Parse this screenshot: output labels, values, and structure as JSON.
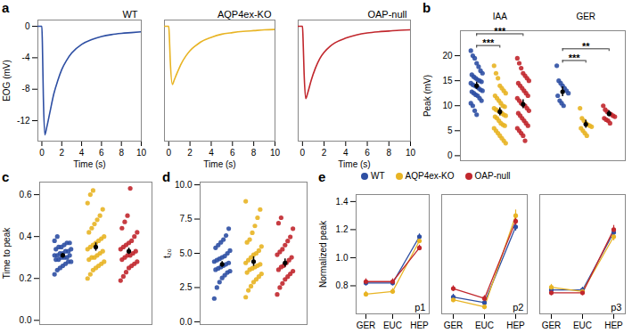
{
  "chart_data": [
    {
      "panel": "a",
      "type": "line",
      "title": "WT",
      "xlabel": "Time (s)",
      "ylabel": "EOG (mV)",
      "color": "#2e4fa3",
      "x": [
        -0.4,
        0,
        0.05,
        0.15,
        0.3,
        0.5,
        0.8,
        1.2,
        1.6,
        2,
        2.5,
        3,
        4,
        5,
        6,
        7,
        8,
        9,
        10
      ],
      "values": [
        0,
        0,
        -2,
        -9,
        -13.8,
        -12.8,
        -11,
        -8.6,
        -6.9,
        -5.5,
        -4.3,
        -3.4,
        -2.3,
        -1.7,
        -1.3,
        -1.05,
        -0.9,
        -0.8,
        -0.7
      ],
      "xlim": [
        -0.4,
        10
      ],
      "ylim": [
        -14.6,
        0.8
      ],
      "xticks": [
        0,
        2,
        4,
        6,
        8,
        10
      ],
      "yticks": [
        -12,
        -8,
        -4,
        0
      ]
    },
    {
      "type": "line",
      "title": "AQP4ex-KO",
      "xlabel": "Time (s)",
      "color": "#e8b424",
      "tick_labels": "x",
      "x": [
        -0.4,
        0,
        0.05,
        0.15,
        0.35,
        0.5,
        0.8,
        1.2,
        1.6,
        2,
        2.5,
        3,
        4,
        5,
        6,
        7,
        8,
        9,
        10
      ],
      "values": [
        0,
        0,
        -1,
        -4.5,
        -7.4,
        -6.9,
        -5.9,
        -4.7,
        -3.8,
        -3.1,
        -2.5,
        -2,
        -1.4,
        -1,
        -0.8,
        -0.65,
        -0.55,
        -0.45,
        -0.4
      ],
      "xlim": [
        -0.4,
        10
      ],
      "ylim": [
        -14.6,
        0.8
      ],
      "xticks": [
        0,
        2,
        4,
        6,
        8,
        10
      ]
    },
    {
      "type": "line",
      "title": "OAP-null",
      "xlabel": "Time (s)",
      "color": "#c1272d",
      "tick_labels": "x",
      "x": [
        -0.4,
        0,
        0.05,
        0.15,
        0.3,
        0.5,
        0.8,
        1.2,
        1.6,
        2,
        2.5,
        3,
        4,
        5,
        6,
        7,
        8,
        9,
        10
      ],
      "values": [
        0,
        0,
        -1.5,
        -6,
        -9.2,
        -8.4,
        -6.9,
        -5.3,
        -4.1,
        -3.3,
        -2.6,
        -2.1,
        -1.5,
        -1.1,
        -0.85,
        -0.7,
        -0.6,
        -0.5,
        -0.45
      ],
      "xlim": [
        -0.4,
        10
      ],
      "ylim": [
        -14.6,
        0.8
      ],
      "xticks": [
        0,
        2,
        4,
        6,
        8,
        10
      ]
    },
    {
      "panel": "b",
      "type": "scatter",
      "ylabel": "Peak (mV)",
      "ylim": [
        -1,
        25
      ],
      "yticks": [
        0,
        5,
        10,
        15,
        20
      ],
      "tick_labels": "y",
      "categories": [
        "IAA",
        "GER"
      ],
      "series": [
        {
          "color": "#2e4fa3",
          "mean": [
            14,
            12.8
          ],
          "error": [
            0.7,
            1.0
          ],
          "values": [
            [
              21,
              20,
              19.5,
              18.5,
              17.8,
              17,
              16.5,
              16.2,
              15.8,
              15.5,
              15.2,
              15,
              14.8,
              14.5,
              14.2,
              14,
              13.8,
              13.5,
              13.2,
              13,
              12.8,
              12.5,
              12.2,
              12,
              11.5,
              11,
              10.5,
              10,
              9,
              8.2
            ],
            [
              18,
              15,
              14.5,
              14,
              13.5,
              13,
              12.5,
              12,
              11,
              10.5,
              10
            ]
          ]
        },
        {
          "color": "#e8b424",
          "mean": [
            8.8,
            6.3
          ],
          "error": [
            0.8,
            0.8
          ],
          "values": [
            [
              18,
              16.5,
              15.5,
              14,
              13.5,
              13,
              12.5,
              12,
              11.5,
              11,
              10.5,
              10,
              9.8,
              9.5,
              9.2,
              9,
              8.8,
              8.5,
              8.2,
              8,
              7.8,
              7.5,
              7,
              6.5,
              6.2,
              6,
              5.5,
              5,
              4.5,
              4,
              3.5,
              3,
              2.5
            ],
            [
              9.5,
              7.5,
              7,
              6.5,
              6.2,
              6,
              5.8,
              5.5,
              5,
              4.5,
              4
            ]
          ]
        },
        {
          "color": "#c1272d",
          "mean": [
            10.3,
            8.4
          ],
          "error": [
            0.9,
            0.6
          ],
          "values": [
            [
              19.5,
              18.5,
              17.5,
              16.5,
              16,
              15.5,
              15,
              14.5,
              14,
              13.5,
              13,
              12.5,
              12,
              11.5,
              11,
              10.5,
              10.2,
              10,
              9.5,
              9,
              8.5,
              8,
              7.5,
              7,
              6.5,
              6,
              5.5,
              5,
              4.5,
              4,
              3
            ],
            [
              10,
              9.2,
              8.8,
              8.5,
              8.3,
              8,
              7.8,
              7.5,
              7.2,
              7,
              6.5
            ]
          ]
        }
      ],
      "annotations": [
        {
          "category": "IAA",
          "from": 0,
          "to": 1,
          "label": "***"
        },
        {
          "category": "IAA",
          "from": 0,
          "to": 2,
          "label": "***"
        },
        {
          "category": "GER",
          "from": 0,
          "to": 1,
          "label": "***"
        },
        {
          "category": "GER",
          "from": 0,
          "to": 2,
          "label": "**"
        }
      ]
    },
    {
      "panel": "c",
      "type": "scatter",
      "ylabel": "Time to peak",
      "ylim": [
        -0.02,
        0.66
      ],
      "yticks": [
        {
          "value": 0,
          "label": "0.0"
        },
        0.2,
        0.4,
        0.6
      ],
      "tick_labels": "y",
      "series": [
        {
          "color": "#2e4fa3",
          "mean": 0.31,
          "error": 0.01,
          "values": [
            0.22,
            0.24,
            0.25,
            0.26,
            0.27,
            0.28,
            0.28,
            0.29,
            0.29,
            0.3,
            0.3,
            0.3,
            0.31,
            0.31,
            0.31,
            0.32,
            0.32,
            0.33,
            0.33,
            0.34,
            0.34,
            0.35,
            0.35,
            0.36,
            0.37,
            0.37,
            0.38,
            0.4
          ]
        },
        {
          "color": "#e8b424",
          "mean": 0.35,
          "error": 0.02,
          "values": [
            0.2,
            0.22,
            0.24,
            0.25,
            0.26,
            0.27,
            0.28,
            0.29,
            0.3,
            0.3,
            0.31,
            0.32,
            0.33,
            0.34,
            0.35,
            0.36,
            0.37,
            0.38,
            0.39,
            0.4,
            0.42,
            0.44,
            0.46,
            0.48,
            0.5,
            0.53,
            0.56,
            0.6,
            0.62
          ]
        },
        {
          "color": "#c1272d",
          "mean": 0.33,
          "error": 0.015,
          "values": [
            0.19,
            0.21,
            0.23,
            0.25,
            0.26,
            0.27,
            0.28,
            0.29,
            0.3,
            0.31,
            0.31,
            0.32,
            0.33,
            0.34,
            0.35,
            0.36,
            0.37,
            0.38,
            0.4,
            0.42,
            0.44,
            0.47,
            0.5,
            0.63
          ]
        }
      ]
    },
    {
      "panel": "d",
      "type": "scatter",
      "ylabel": "t₂₀",
      "ylim": [
        -0.2,
        10.2
      ],
      "yticks": [
        {
          "value": 0,
          "label": "0.0"
        },
        2.5,
        {
          "value": 5,
          "label": "5.0"
        },
        7.5,
        {
          "value": 10,
          "label": "10.0"
        }
      ],
      "tick_labels": "y",
      "series": [
        {
          "color": "#2e4fa3",
          "mean": 4.2,
          "error": 0.2,
          "values": [
            1.7,
            2.5,
            2.9,
            3.2,
            3.4,
            3.6,
            3.7,
            3.8,
            3.9,
            4,
            4.1,
            4.2,
            4.3,
            4.4,
            4.5,
            4.6,
            4.7,
            4.8,
            5,
            5.2,
            5.4,
            5.6,
            5.8,
            6,
            6.3,
            6.8
          ]
        },
        {
          "color": "#e8b424",
          "mean": 4.4,
          "error": 0.35,
          "values": [
            1.8,
            2.3,
            2.6,
            2.9,
            3.1,
            3.3,
            3.5,
            3.6,
            3.8,
            3.9,
            4,
            4.1,
            4.2,
            4.3,
            4.5,
            4.7,
            4.9,
            5,
            5.2,
            5.5,
            5.8,
            6,
            6.5,
            7,
            7.6,
            8.2,
            8.8
          ]
        },
        {
          "color": "#c1272d",
          "mean": 4.3,
          "error": 0.3,
          "values": [
            2,
            2.5,
            2.8,
            3.1,
            3.3,
            3.5,
            3.7,
            3.8,
            4,
            4.1,
            4.3,
            4.5,
            4.7,
            4.9,
            5.1,
            5.3,
            5.6,
            5.9,
            6.2,
            6.8,
            7.2,
            7.6
          ]
        }
      ]
    },
    {
      "panel": "e",
      "type": "line",
      "ylabel": "Normalized peak",
      "ylim": [
        0.6,
        1.45
      ],
      "yticks": [
        0.8,
        {
          "value": 1,
          "label": "1.0"
        },
        1.2,
        1.4
      ],
      "legend": "top",
      "categories": [
        "GER",
        "EUC",
        "HEP"
      ],
      "panels": [
        "p1",
        "p2",
        "p3"
      ],
      "series": [
        {
          "name": "WT",
          "color": "#2e4fa3",
          "values": [
            [
              0.82,
              0.82,
              1.15
            ],
            [
              0.72,
              0.68,
              1.22
            ],
            [
              0.77,
              0.77,
              1.18
            ]
          ],
          "errors": [
            [
              0.02,
              0.02,
              0.02
            ],
            [
              0.02,
              0.02,
              0.03
            ],
            [
              0.02,
              0.02,
              0.03
            ]
          ]
        },
        {
          "name": "AQP4ex-KO",
          "color": "#e8b424",
          "values": [
            [
              0.74,
              0.76,
              1.12
            ],
            [
              0.7,
              0.65,
              1.3
            ],
            [
              0.79,
              0.76,
              1.15
            ]
          ],
          "errors": [
            [
              0.02,
              0.02,
              0.02
            ],
            [
              0.02,
              0.02,
              0.04
            ],
            [
              0.02,
              0.02,
              0.03
            ]
          ]
        },
        {
          "name": "OAP-null",
          "color": "#c1272d",
          "values": [
            [
              0.83,
              0.83,
              1.07
            ],
            [
              0.78,
              0.71,
              1.26
            ],
            [
              0.75,
              0.75,
              1.2
            ]
          ],
          "errors": [
            [
              0.02,
              0.02,
              0.02
            ],
            [
              0.02,
              0.02,
              0.03
            ],
            [
              0.02,
              0.02,
              0.03
            ]
          ]
        }
      ]
    }
  ]
}
